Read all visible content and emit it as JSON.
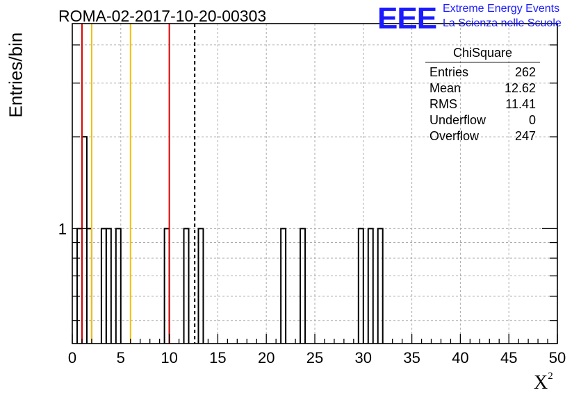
{
  "title": "ROMA-02-2017-10-20-00303",
  "logo": {
    "mark": "EEE",
    "line1": "Extreme Energy Events",
    "line2": "La Scienza nelle Scuole",
    "color": "#1a1aff"
  },
  "stats": {
    "title": "ChiSquare",
    "rows": [
      {
        "label": "Entries",
        "value": "262"
      },
      {
        "label": "Mean",
        "value": "12.62"
      },
      {
        "label": "RMS",
        "value": "11.41"
      },
      {
        "label": "Underflow",
        "value": "0"
      },
      {
        "label": "Overflow",
        "value": "247"
      }
    ]
  },
  "chart_data": {
    "type": "bar",
    "histogram": true,
    "title": "ROMA-02-2017-10-20-00303",
    "xlabel": "X²",
    "ylabel": "Entries/bin",
    "xlim": [
      0,
      50
    ],
    "ylog": true,
    "y_ticks_labeled": [
      "1"
    ],
    "x_ticks": [
      "0",
      "5",
      "10",
      "15",
      "20",
      "25",
      "30",
      "35",
      "40",
      "45",
      "50"
    ],
    "bin_width": 0.5,
    "bins": [
      {
        "x": 0.5,
        "count": 1
      },
      {
        "x": 1.0,
        "count": 2
      },
      {
        "x": 1.5,
        "count": 1
      },
      {
        "x": 3.0,
        "count": 1
      },
      {
        "x": 3.5,
        "count": 1
      },
      {
        "x": 4.5,
        "count": 1
      },
      {
        "x": 9.5,
        "count": 1
      },
      {
        "x": 11.5,
        "count": 1
      },
      {
        "x": 13.0,
        "count": 1
      },
      {
        "x": 21.5,
        "count": 1
      },
      {
        "x": 23.5,
        "count": 1
      },
      {
        "x": 29.5,
        "count": 1
      },
      {
        "x": 30.5,
        "count": 1
      },
      {
        "x": 31.5,
        "count": 1
      }
    ],
    "reference_lines": [
      {
        "x": 1,
        "color": "#dd0000",
        "style": "solid"
      },
      {
        "x": 2,
        "color": "#f0c000",
        "style": "solid"
      },
      {
        "x": 6,
        "color": "#f0c000",
        "style": "solid"
      },
      {
        "x": 10,
        "color": "#dd0000",
        "style": "solid"
      },
      {
        "x": 12.62,
        "color": "#000000",
        "style": "dashed"
      }
    ],
    "grid": true
  }
}
